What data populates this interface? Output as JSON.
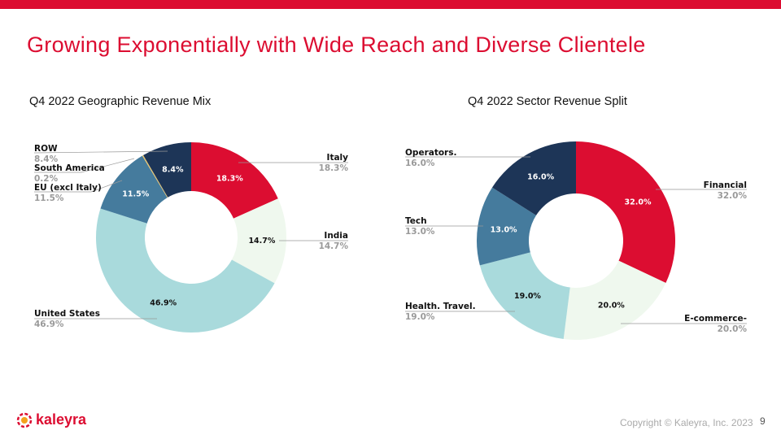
{
  "title": "Growing Exponentially with Wide Reach and Diverse Clientele",
  "chart_data": [
    {
      "type": "pie",
      "title": "Q4 2022 Geographic Revenue Mix",
      "style": "donut",
      "slices": [
        {
          "label": "Italy",
          "value": 18.3,
          "display": "18.3%",
          "color": "#dc0d31",
          "text_color": "#ffffff"
        },
        {
          "label": "India",
          "value": 14.7,
          "display": "14.7%",
          "color": "#eff8ee",
          "text_color": "#111111"
        },
        {
          "label": "United States",
          "value": 46.9,
          "display": "46.9%",
          "color": "#a9dadc",
          "text_color": "#111111"
        },
        {
          "label": "EU (excl Italy)",
          "value": 11.5,
          "display": "11.5%",
          "color": "#457b9d",
          "text_color": "#ffffff"
        },
        {
          "label": "South America",
          "value": 0.2,
          "display": "0.2%",
          "color": "#e9c46a",
          "text_color": "#111111"
        },
        {
          "label": "ROW",
          "value": 8.4,
          "display": "8.4%",
          "color": "#1d3557",
          "text_color": "#ffffff"
        }
      ]
    },
    {
      "type": "pie",
      "title": "Q4 2022 Sector Revenue Split",
      "style": "donut",
      "slices": [
        {
          "label": "Financial",
          "value": 32.0,
          "display": "32.0%",
          "color": "#dc0d31",
          "text_color": "#ffffff"
        },
        {
          "label": "E-commerce-",
          "value": 20.0,
          "display": "20.0%",
          "color": "#eff8ee",
          "text_color": "#111111"
        },
        {
          "label": "Health. Travel.",
          "value": 19.0,
          "display": "19.0%",
          "color": "#a9dadc",
          "text_color": "#111111"
        },
        {
          "label": "Tech",
          "value": 13.0,
          "display": "13.0%",
          "color": "#457b9d",
          "text_color": "#ffffff"
        },
        {
          "label": "Operators.",
          "value": 16.0,
          "display": "16.0%",
          "color": "#1d3557",
          "text_color": "#ffffff"
        }
      ]
    }
  ],
  "footer": {
    "logo": "kaleyra",
    "copyright": "Copyright © Kaleyra, Inc. 2023",
    "page": "9"
  }
}
